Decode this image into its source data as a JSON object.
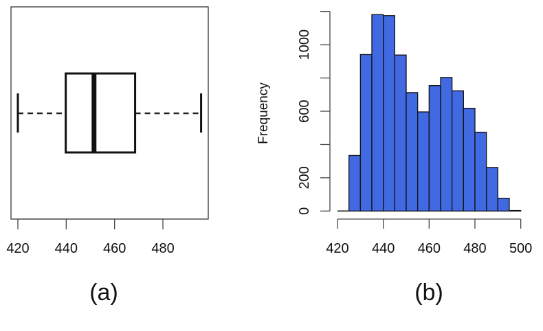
{
  "chart_data": [
    {
      "type": "boxplot",
      "panel_label": "(a)",
      "orientation": "horizontal",
      "xlim": [
        420,
        496
      ],
      "xticks": [
        420,
        440,
        460,
        480
      ],
      "xtick_labels": [
        "420",
        "440",
        "460",
        "480"
      ],
      "stats": {
        "whisker_low": 420,
        "q1": 439.8,
        "median": 451.5,
        "q3": 468.5,
        "whisker_high": 495.8
      },
      "title": "",
      "xlabel": "",
      "ylabel": ""
    },
    {
      "type": "histogram",
      "panel_label": "(b)",
      "bin_edges": [
        425,
        430,
        435,
        440,
        445,
        450,
        455,
        460,
        465,
        470,
        475,
        480,
        485,
        490,
        495,
        500
      ],
      "values": [
        334,
        941,
        1181,
        1175,
        938,
        712,
        596,
        754,
        803,
        723,
        618,
        474,
        262,
        77,
        3
      ],
      "bar_color": "#4169E1",
      "xlim": [
        420,
        500
      ],
      "ylim": [
        0,
        1200
      ],
      "xticks": [
        420,
        440,
        460,
        480,
        500
      ],
      "xtick_labels": [
        "420",
        "440",
        "460",
        "480",
        "500"
      ],
      "yticks": [
        0,
        200,
        400,
        600,
        800,
        1000,
        1200
      ],
      "ytick_labels": [
        "0",
        "200",
        "",
        "600",
        "",
        "1000",
        ""
      ],
      "ylabel": "Frequency",
      "title": "",
      "xlabel": ""
    }
  ]
}
